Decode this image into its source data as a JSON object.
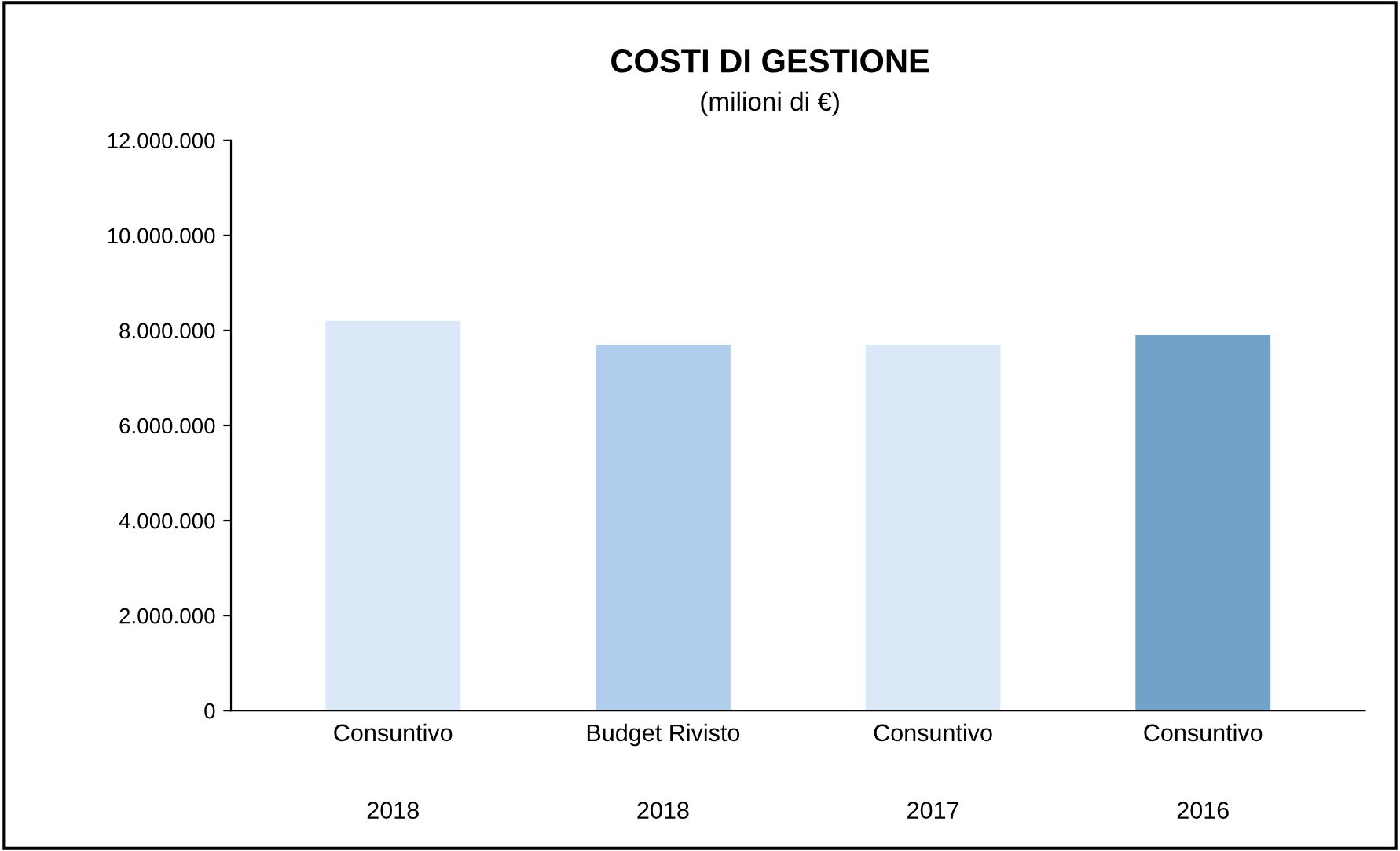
{
  "chart_data": {
    "type": "bar",
    "title": "COSTI DI GESTIONE",
    "subtitle": "(milioni di €)",
    "categories": [
      "Consuntivo\n\n\n2018",
      "Budget Rivisto\n\n\n2018",
      "Consuntivo\n\n\n2017",
      "Consuntivo\n\n\n2016"
    ],
    "values": [
      8200000,
      7700000,
      7700000,
      7900000
    ],
    "colors": [
      "#dae8f7",
      "#b0cdeb",
      "#dae8f7",
      "#72a2c8"
    ],
    "ylim": [
      0,
      12000000
    ],
    "yticks": [
      {
        "value": 0,
        "label": "0"
      },
      {
        "value": 2000000,
        "label": "2.000.000"
      },
      {
        "value": 4000000,
        "label": "4.000.000"
      },
      {
        "value": 6000000,
        "label": "6.000.000"
      },
      {
        "value": 8000000,
        "label": "8.000.000"
      },
      {
        "value": 10000000,
        "label": "10.000.000"
      },
      {
        "value": 12000000,
        "label": "12.000.000"
      }
    ],
    "grid": false
  }
}
